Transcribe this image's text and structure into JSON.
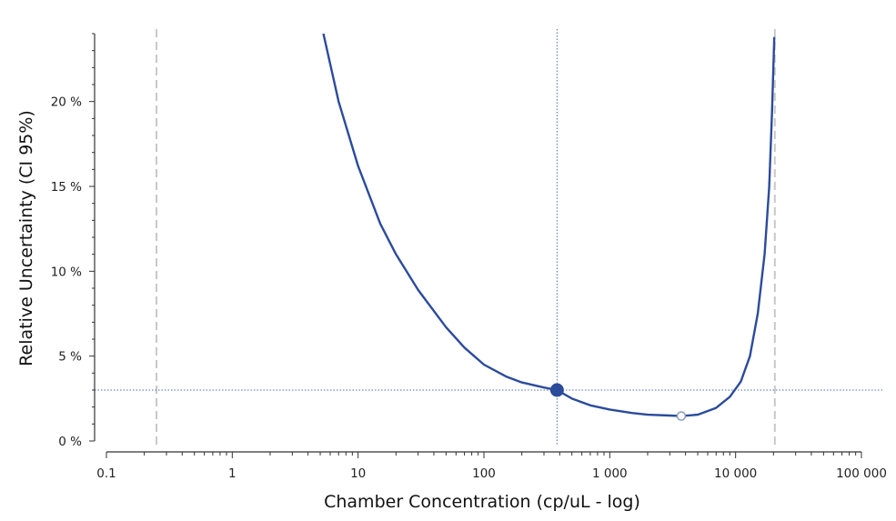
{
  "chart_data": {
    "type": "line",
    "xscale": "log",
    "xlabel": "Chamber Concentration (cp/uL - log)",
    "ylabel": "Relative Uncertainty (CI 95%)",
    "xlim": [
      0.1,
      100000
    ],
    "ylim": [
      0,
      24
    ],
    "x_ticks": [
      {
        "value": 0.1,
        "label": "0.1"
      },
      {
        "value": 1,
        "label": "1"
      },
      {
        "value": 10,
        "label": "10"
      },
      {
        "value": 100,
        "label": "100"
      },
      {
        "value": 1000,
        "label": "1 000"
      },
      {
        "value": 10000,
        "label": "10 000"
      },
      {
        "value": 100000,
        "label": "100 000"
      }
    ],
    "y_ticks": [
      {
        "value": 0,
        "label": "0 %"
      },
      {
        "value": 5,
        "label": "5 %"
      },
      {
        "value": 10,
        "label": "10 %"
      },
      {
        "value": 15,
        "label": "15 %"
      },
      {
        "value": 20,
        "label": "20 %"
      }
    ],
    "series": [
      {
        "color": "#2b4b9b",
        "points": [
          [
            5.3,
            24.0
          ],
          [
            7,
            20.0
          ],
          [
            10,
            16.2
          ],
          [
            15,
            12.8
          ],
          [
            20,
            11.0
          ],
          [
            30,
            8.9
          ],
          [
            50,
            6.7
          ],
          [
            70,
            5.5
          ],
          [
            100,
            4.5
          ],
          [
            150,
            3.8
          ],
          [
            200,
            3.45
          ],
          [
            300,
            3.15
          ],
          [
            381,
            3.0
          ],
          [
            500,
            2.5
          ],
          [
            700,
            2.1
          ],
          [
            1000,
            1.85
          ],
          [
            1500,
            1.65
          ],
          [
            2000,
            1.55
          ],
          [
            3000,
            1.5
          ],
          [
            3700,
            1.47
          ],
          [
            5000,
            1.55
          ],
          [
            7000,
            1.95
          ],
          [
            9000,
            2.6
          ],
          [
            11000,
            3.5
          ],
          [
            13000,
            5.0
          ],
          [
            15000,
            7.5
          ],
          [
            17000,
            11.0
          ],
          [
            18500,
            15.0
          ],
          [
            19500,
            19.5
          ],
          [
            20300,
            23.8
          ]
        ]
      }
    ],
    "marked_point": {
      "x": 381,
      "y": 3.0,
      "color": "#2b4b9b"
    },
    "optimum_point": {
      "x": 3700,
      "y": 1.47
    },
    "reference_lines": {
      "vertical_dashed": [
        0.25,
        20500
      ],
      "vertical_dotted": 381,
      "horizontal_dotted": 3.0
    },
    "grid": false
  }
}
